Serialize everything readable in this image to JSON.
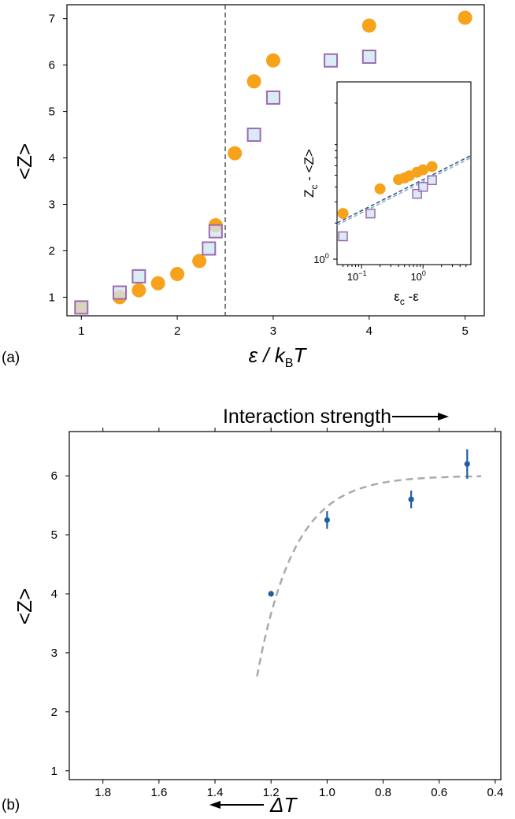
{
  "chart_data": [
    {
      "type": "scatter",
      "panel_label": "(a)",
      "xlabel_parts": [
        "ε / k",
        "B",
        "T"
      ],
      "ylabel": "<Z>",
      "xlim": [
        0.85,
        5.2
      ],
      "ylim": [
        0.6,
        7.3
      ],
      "xticks": [
        1,
        2,
        3,
        4,
        5
      ],
      "yticks": [
        1,
        2,
        3,
        4,
        5,
        6,
        7
      ],
      "vline_x": 2.5,
      "series": [
        {
          "marker": "circle",
          "color": "#f7a21b",
          "x": [
            1.0,
            1.4,
            1.6,
            1.8,
            2.0,
            2.23,
            2.4,
            2.6,
            2.8,
            3.0,
            4.0,
            5.0
          ],
          "y": [
            0.78,
            1.0,
            1.15,
            1.3,
            1.5,
            1.78,
            2.55,
            4.1,
            5.65,
            6.1,
            6.85,
            7.02
          ]
        },
        {
          "marker": "square",
          "color": "#cfe4f1",
          "edgecolor": "#9b6bb1",
          "x": [
            1.0,
            1.4,
            1.6,
            2.33,
            2.4,
            2.8,
            3.0,
            3.6,
            4.0
          ],
          "y": [
            0.78,
            1.1,
            1.45,
            2.05,
            2.42,
            4.5,
            5.3,
            6.1,
            6.18
          ]
        }
      ],
      "inset": {
        "type": "scatter",
        "xscale": "log",
        "yscale": "log",
        "xlabel_parts": [
          "ε",
          "c",
          " -ε"
        ],
        "ylabel_parts": [
          "Z",
          "c",
          " - <Z>"
        ],
        "xlim": [
          0.04,
          6.0
        ],
        "ylim": [
          0.9,
          30.0
        ],
        "xticks": [
          {
            "value": 0.1,
            "base": "10",
            "exp": "−1"
          },
          {
            "value": 1.0,
            "base": "10",
            "exp": "0"
          }
        ],
        "yticks": [
          {
            "value": 1.0,
            "base": "10",
            "exp": "0"
          }
        ],
        "series": [
          {
            "marker": "circle",
            "color": "#f7a21b",
            "x": [
              0.05,
              0.2,
              0.4,
              0.5,
              0.6,
              0.8,
              1.0,
              1.4
            ],
            "y": [
              2.4,
              3.85,
              4.6,
              4.75,
              4.95,
              5.3,
              5.55,
              5.9
            ]
          },
          {
            "marker": "square",
            "color": "#cfe4f1",
            "edgecolor": "#9b6bb1",
            "x": [
              0.05,
              0.14,
              0.8,
              1.0,
              1.4
            ],
            "y": [
              1.55,
              2.4,
              3.5,
              4.0,
              4.55
            ]
          }
        ],
        "fit_lines": [
          {
            "color": "#3d5a8a",
            "x": [
              0.04,
              6.0
            ],
            "y": [
              2.0,
              7.3
            ]
          },
          {
            "color": "#8ab0cf",
            "x": [
              0.04,
              6.0
            ],
            "y": [
              1.92,
              7.0
            ]
          }
        ]
      }
    },
    {
      "type": "scatter",
      "panel_label": "(b)",
      "title": "Interaction strength",
      "xlabel": "ΔT",
      "ylabel": "<Z>",
      "xlim": [
        1.92,
        0.38
      ],
      "ylim": [
        0.85,
        6.75
      ],
      "xticks": [
        1.8,
        1.6,
        1.4,
        1.2,
        1.0,
        0.8,
        0.6,
        0.4
      ],
      "xtick_labels": [
        "1.8",
        "1.6",
        "1.4",
        "1.2",
        "1.0",
        "0.8",
        "0.6",
        "0.4"
      ],
      "yticks": [
        1,
        2,
        3,
        4,
        5,
        6
      ],
      "series": [
        {
          "marker": "point",
          "color": "#1f5f9e",
          "x": [
            1.2,
            1.0,
            0.7,
            0.5
          ],
          "y": [
            4.0,
            5.25,
            5.6,
            6.2
          ],
          "yerr": [
            0.0,
            0.15,
            0.15,
            0.25
          ]
        }
      ],
      "fit_curve": {
        "style": "dashed",
        "color": "#aaaaaa",
        "form": "6 - a*exp(-b*(1.25 - x))",
        "asymptote": 6.0,
        "x_range": [
          1.25,
          0.45
        ]
      }
    }
  ]
}
